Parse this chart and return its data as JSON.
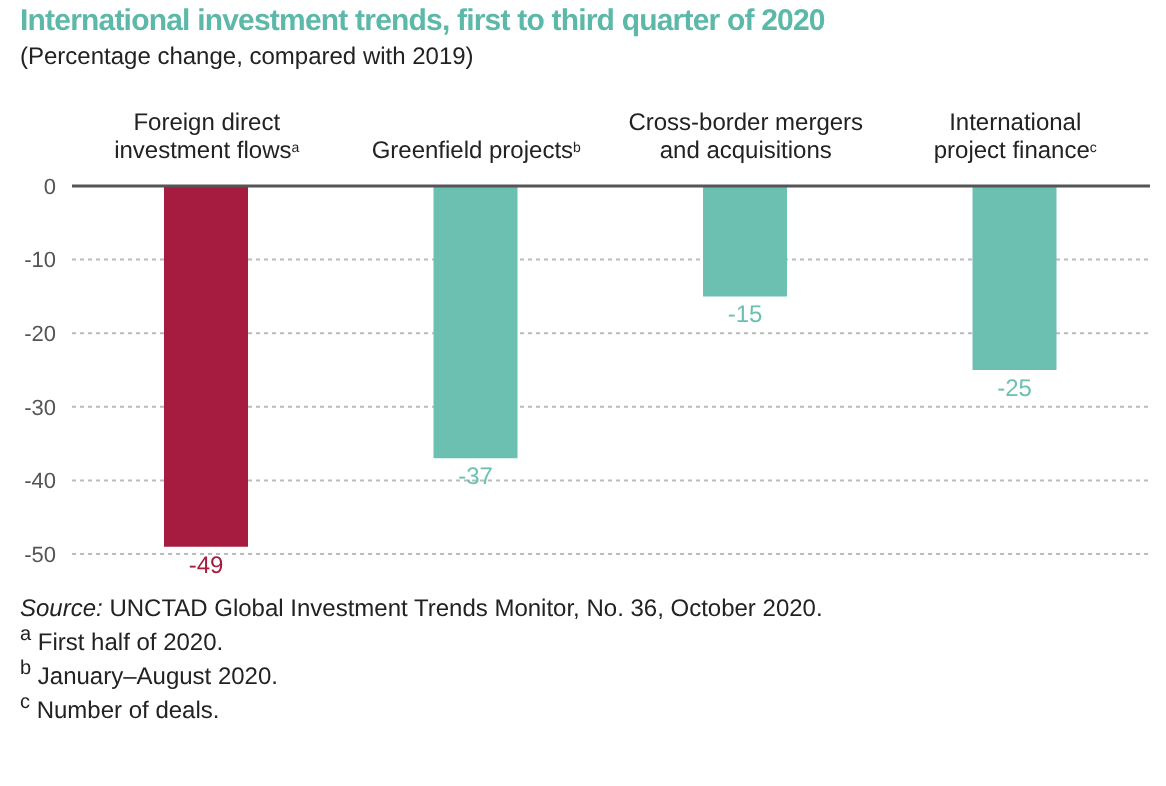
{
  "chart_data": {
    "type": "bar",
    "title": "International investment trends, first to third quarter of 2020",
    "subtitle": "(Percentage change, compared with 2019)",
    "categories": [
      "Foreign direct investment flows$^{a}$",
      "Greenfield projects$^{b}$",
      "Cross-border mergers and acquisitions",
      "International project finance$^{c}$"
    ],
    "values": [
      -49,
      -37,
      -15,
      -25
    ],
    "colors": [
      "#a51c40",
      "#6cc0b2",
      "#6cc0b2",
      "#6cc0b2"
    ],
    "ylim": [
      -50,
      0
    ],
    "yticks": [
      0,
      -10,
      -20,
      -30,
      -40,
      -50
    ],
    "grid": "y",
    "data_labels": true,
    "annotations": [
      "Source: UNCTAD Global Investment Trends Monitor, No. 36, October 2020.",
      "$^{a}$ First half of 2020.",
      "$^{b}$ January–August 2020.",
      "$^{c}$ Number of deals."
    ]
  }
}
